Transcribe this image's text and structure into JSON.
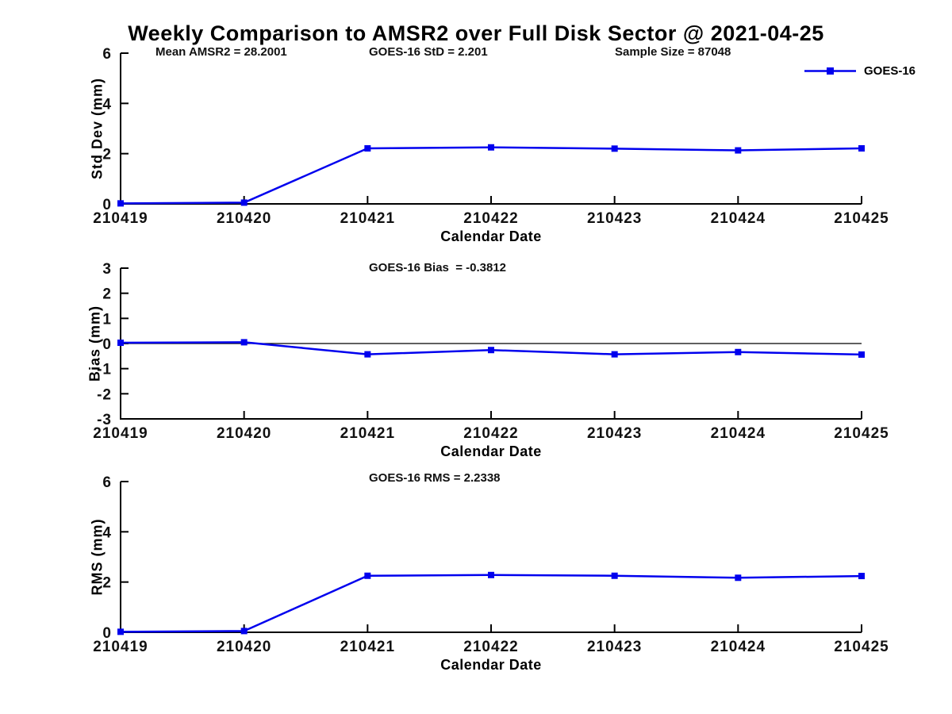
{
  "title": "Weekly Comparison to AMSR2 over Full Disk Sector @ 2021-04-25",
  "colors": {
    "series": "#0000ee",
    "axis": "#000000",
    "zero_line": "#000000",
    "text": "#111111"
  },
  "chart_data": [
    {
      "type": "line",
      "annotations": [
        "Mean AMSR2 = 28.2001",
        "GOES-16 StD = 2.201",
        "Sample Size = 87048"
      ],
      "categories": [
        "210419",
        "210420",
        "210421",
        "210422",
        "210423",
        "210424",
        "210425"
      ],
      "series": [
        {
          "name": "GOES-16",
          "values": [
            0.02,
            0.05,
            2.21,
            2.25,
            2.2,
            2.13,
            2.21
          ]
        }
      ],
      "xlabel": "Calendar Date",
      "ylabel": "Std Dev (mm)",
      "ylim": [
        0,
        6
      ],
      "yticks": [
        0,
        2,
        4,
        6
      ],
      "zero_line": false,
      "grid": false,
      "legend": {
        "visible": true,
        "position": "top-right-outside"
      }
    },
    {
      "type": "line",
      "annotations": [
        "GOES-16 Bias  = -0.3812"
      ],
      "categories": [
        "210419",
        "210420",
        "210421",
        "210422",
        "210423",
        "210424",
        "210425"
      ],
      "series": [
        {
          "name": "GOES-16",
          "values": [
            0.03,
            0.05,
            -0.43,
            -0.26,
            -0.43,
            -0.34,
            -0.44
          ]
        }
      ],
      "xlabel": "Calendar Date",
      "ylabel": "Bias (mm)",
      "ylim": [
        -3,
        3
      ],
      "yticks": [
        -3,
        -2,
        -1,
        0,
        1,
        2,
        3
      ],
      "zero_line": true,
      "grid": false,
      "legend": {
        "visible": false
      }
    },
    {
      "type": "line",
      "annotations": [
        "GOES-16 RMS = 2.2338"
      ],
      "categories": [
        "210419",
        "210420",
        "210421",
        "210422",
        "210423",
        "210424",
        "210425"
      ],
      "series": [
        {
          "name": "GOES-16",
          "values": [
            0.02,
            0.05,
            2.25,
            2.28,
            2.25,
            2.17,
            2.24
          ]
        }
      ],
      "xlabel": "Calendar Date",
      "ylabel": "RMS (mm)",
      "ylim": [
        0,
        6
      ],
      "yticks": [
        0,
        2,
        4,
        6
      ],
      "zero_line": false,
      "grid": false,
      "legend": {
        "visible": false
      }
    }
  ]
}
